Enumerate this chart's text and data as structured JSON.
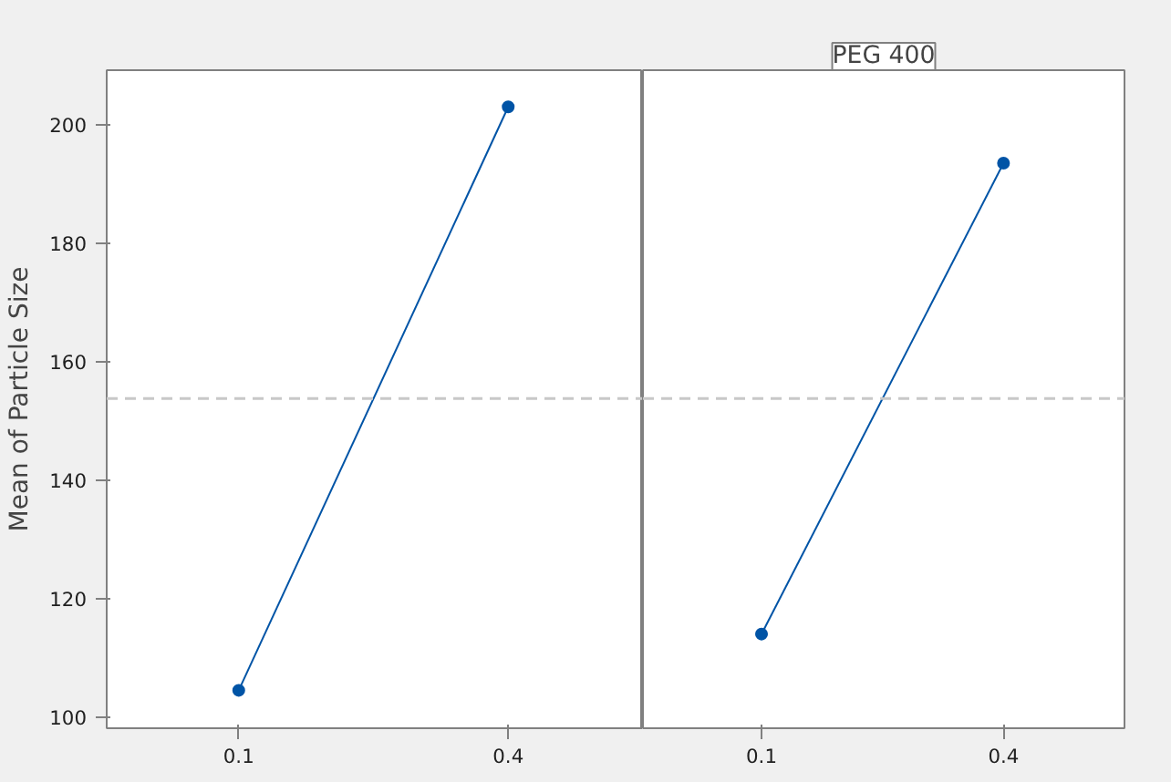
{
  "chart_data": [
    {
      "type": "line",
      "categories": [
        "0.1",
        "0.4"
      ],
      "ylabel": "Mean of Particle Size",
      "series": [
        {
          "color": "#0054a6",
          "values": [
            104.5,
            203
          ]
        }
      ],
      "ylim": [
        98.1,
        209.2
      ],
      "yticks": [
        100,
        120,
        140,
        160,
        180,
        200
      ],
      "marker": "circle",
      "line_style": "solid",
      "grid": false,
      "ref_lines": [
        {
          "axis": "y",
          "value": 153.75,
          "color": "#c8c8c8",
          "line_style": "dashed"
        }
      ]
    },
    {
      "type": "line",
      "title": "PEG 400",
      "categories": [
        "0.1",
        "0.4"
      ],
      "series": [
        {
          "color": "#0054a6",
          "values": [
            114,
            193.5
          ]
        }
      ],
      "ylim": [
        98.1,
        209.2
      ],
      "yticks": [
        100,
        120,
        140,
        160,
        180,
        200
      ],
      "marker": "circle",
      "line_style": "solid",
      "grid": false,
      "tick_labels": "x",
      "ref_lines": [
        {
          "axis": "y",
          "value": 153.75,
          "color": "#c8c8c8",
          "line_style": "dashed"
        }
      ]
    }
  ]
}
